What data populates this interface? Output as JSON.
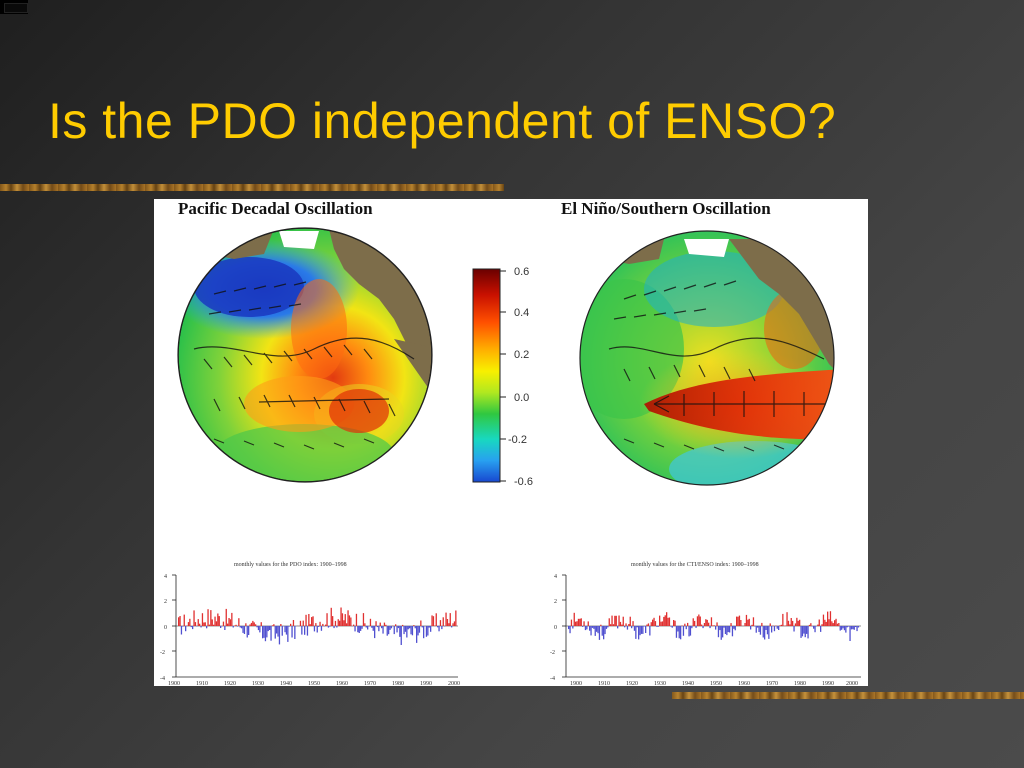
{
  "slide": {
    "title": "Is the PDO independent of ENSO?"
  },
  "figure": {
    "left_panel": {
      "title": "Pacific Decadal Oscillation",
      "series_caption": "monthly values for the PDO index: 1900–1998",
      "y_ticks": [
        "4",
        "2",
        "0",
        "-2",
        "-4"
      ],
      "x_ticks": [
        "1900",
        "1910",
        "1920",
        "1930",
        "1940",
        "1950",
        "1960",
        "1970",
        "1980",
        "1990",
        "2000"
      ]
    },
    "right_panel": {
      "title": "El Niño/Southern Oscillation",
      "series_caption": "monthly values for the CTI/ENSO index: 1900–1998",
      "y_ticks": [
        "4",
        "2",
        "0",
        "-2",
        "-4"
      ],
      "x_ticks": [
        "1900",
        "1910",
        "1920",
        "1930",
        "1940",
        "1950",
        "1960",
        "1970",
        "1980",
        "1990",
        "2000"
      ]
    },
    "colorbar": {
      "labels": [
        "0.6",
        "0.4",
        "0.2",
        "0.0",
        "-0.2",
        "-0.6"
      ],
      "colors": [
        "#7a0000",
        "#d81b00",
        "#ff7a00",
        "#ffd000",
        "#d8f000",
        "#3cd13c",
        "#1fc8a0",
        "#28a8f0",
        "#1a60d8"
      ]
    },
    "colors": {
      "positive_bars": "#e03030",
      "negative_bars": "#5050d0",
      "land": "#7d6d4a",
      "ice": "#ffffff"
    }
  }
}
